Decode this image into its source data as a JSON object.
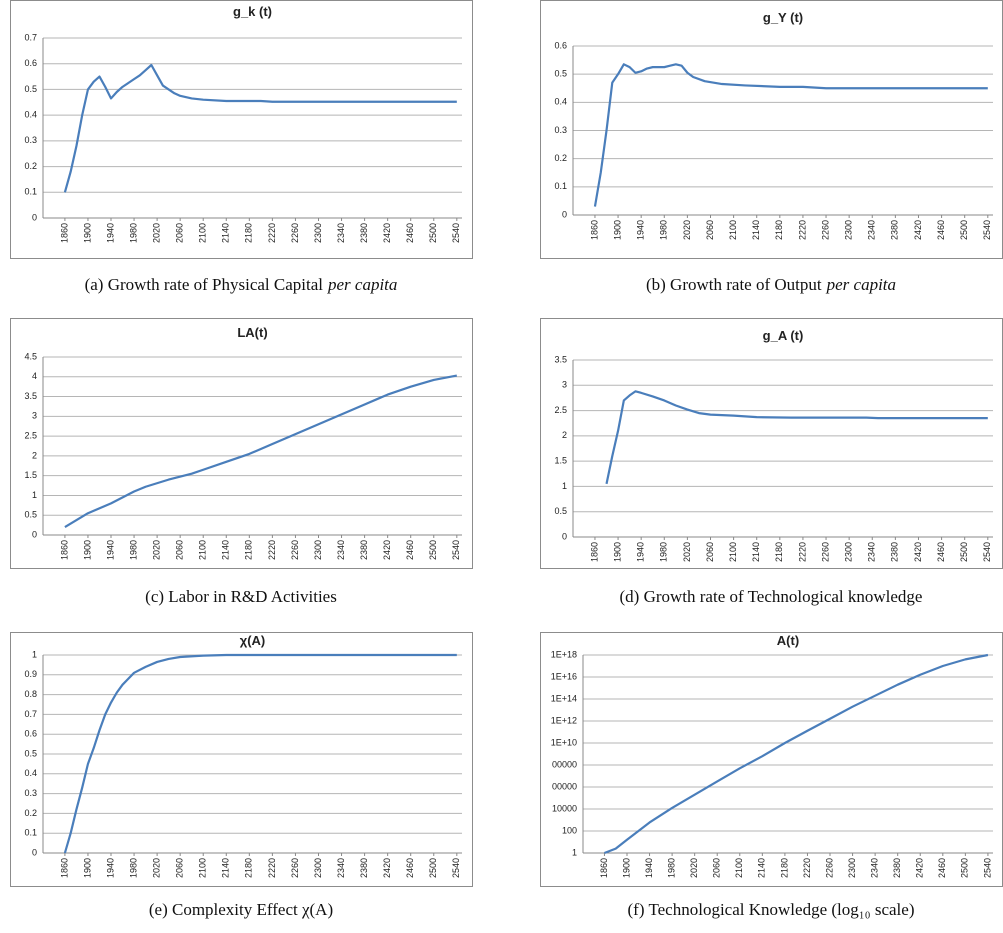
{
  "chart_data": [
    {
      "type": "line",
      "title": "g_k (t)",
      "caption": "(a) Growth rate of Physical Capital",
      "caption_italic": "per capita",
      "x": [
        1860,
        1870,
        1880,
        1890,
        1900,
        1910,
        1920,
        1930,
        1940,
        1950,
        1960,
        1970,
        1980,
        1990,
        2000,
        2010,
        2020,
        2030,
        2040,
        2050,
        2060,
        2080,
        2100,
        2140,
        2200,
        2220,
        2540
      ],
      "values": [
        0.1,
        0.18,
        0.28,
        0.4,
        0.5,
        0.53,
        0.55,
        0.51,
        0.465,
        0.49,
        0.51,
        0.525,
        0.54,
        0.555,
        0.575,
        0.595,
        0.555,
        0.515,
        0.5,
        0.485,
        0.475,
        0.465,
        0.46,
        0.455,
        0.455,
        0.452,
        0.452
      ],
      "color": "#4a7ebb",
      "xlim": [
        1822,
        2549
      ],
      "xticks": [
        1860,
        1900,
        1940,
        1980,
        2020,
        2060,
        2100,
        2140,
        2180,
        2220,
        2260,
        2300,
        2340,
        2380,
        2420,
        2460,
        2500,
        2540
      ],
      "ylim": [
        0,
        0.7
      ],
      "yticks": [
        0,
        0.1,
        0.2,
        0.3,
        0.4,
        0.5,
        0.6,
        0.7
      ],
      "grid": true
    },
    {
      "type": "line",
      "title": "g_Y (t)",
      "caption": "(b) Growth rate of Output",
      "caption_italic": "per capita",
      "x": [
        1860,
        1870,
        1880,
        1890,
        1900,
        1910,
        1920,
        1930,
        1940,
        1950,
        1960,
        1980,
        1990,
        2000,
        2010,
        2020,
        2030,
        2050,
        2080,
        2120,
        2180,
        2220,
        2260,
        2540
      ],
      "values": [
        0.03,
        0.15,
        0.3,
        0.47,
        0.5,
        0.535,
        0.525,
        0.505,
        0.51,
        0.52,
        0.525,
        0.525,
        0.53,
        0.535,
        0.53,
        0.505,
        0.49,
        0.475,
        0.465,
        0.46,
        0.455,
        0.455,
        0.45,
        0.45
      ],
      "color": "#4a7ebb",
      "xlim": [
        1822,
        2549
      ],
      "xticks": [
        1860,
        1900,
        1940,
        1980,
        2020,
        2060,
        2100,
        2140,
        2180,
        2220,
        2260,
        2300,
        2340,
        2380,
        2420,
        2460,
        2500,
        2540
      ],
      "ylim": [
        0,
        0.6
      ],
      "yticks": [
        0,
        0.1,
        0.2,
        0.3,
        0.4,
        0.5,
        0.6
      ],
      "grid": true
    },
    {
      "type": "line",
      "title": "LA(t)",
      "caption": "(c) Labor in R&D Activities",
      "x": [
        1860,
        1900,
        1940,
        1980,
        2000,
        2040,
        2080,
        2100,
        2140,
        2180,
        2220,
        2260,
        2300,
        2340,
        2380,
        2420,
        2460,
        2500,
        2540
      ],
      "values": [
        0.2,
        0.55,
        0.8,
        1.1,
        1.22,
        1.4,
        1.55,
        1.65,
        1.85,
        2.05,
        2.3,
        2.55,
        2.8,
        3.05,
        3.3,
        3.55,
        3.75,
        3.92,
        4.03
      ],
      "color": "#4a7ebb",
      "xlim": [
        1822,
        2549
      ],
      "xticks": [
        1860,
        1900,
        1940,
        1980,
        2020,
        2060,
        2100,
        2140,
        2180,
        2220,
        2260,
        2300,
        2340,
        2380,
        2420,
        2460,
        2500,
        2540
      ],
      "ylim": [
        0,
        4.5
      ],
      "yticks": [
        0,
        0.5,
        1,
        1.5,
        2,
        2.5,
        3,
        3.5,
        4,
        4.5
      ],
      "grid": true
    },
    {
      "type": "line",
      "title": "g_A (t)",
      "caption": "(d) Growth rate of Technological knowledge",
      "x": [
        1880,
        1890,
        1900,
        1910,
        1920,
        1930,
        1940,
        1960,
        1980,
        2000,
        2020,
        2040,
        2060,
        2100,
        2140,
        2200,
        2330,
        2350,
        2540
      ],
      "values": [
        1.05,
        1.6,
        2.1,
        2.7,
        2.8,
        2.88,
        2.85,
        2.78,
        2.7,
        2.6,
        2.52,
        2.45,
        2.42,
        2.4,
        2.37,
        2.36,
        2.36,
        2.35,
        2.35
      ],
      "color": "#4a7ebb",
      "xlim": [
        1822,
        2549
      ],
      "xticks": [
        1860,
        1900,
        1940,
        1980,
        2020,
        2060,
        2100,
        2140,
        2180,
        2220,
        2260,
        2300,
        2340,
        2380,
        2420,
        2460,
        2500,
        2540
      ],
      "ylim": [
        0,
        3.5
      ],
      "yticks": [
        0,
        0.5,
        1,
        1.5,
        2,
        2.5,
        3,
        3.5
      ],
      "grid": true
    },
    {
      "type": "line",
      "title": "χ(A)",
      "caption": "(e) Complexity Effect χ(A)",
      "x": [
        1860,
        1870,
        1880,
        1890,
        1900,
        1910,
        1920,
        1930,
        1940,
        1950,
        1960,
        1970,
        1980,
        2000,
        2020,
        2040,
        2060,
        2100,
        2140,
        2540
      ],
      "values": [
        0,
        0.1,
        0.22,
        0.33,
        0.45,
        0.53,
        0.62,
        0.7,
        0.76,
        0.81,
        0.85,
        0.88,
        0.91,
        0.94,
        0.965,
        0.98,
        0.99,
        0.997,
        1,
        1
      ],
      "color": "#4a7ebb",
      "xlim": [
        1822,
        2549
      ],
      "xticks": [
        1860,
        1900,
        1940,
        1980,
        2020,
        2060,
        2100,
        2140,
        2180,
        2220,
        2260,
        2300,
        2340,
        2380,
        2420,
        2460,
        2500,
        2540
      ],
      "ylim": [
        0,
        1
      ],
      "yticks": [
        0,
        0.1,
        0.2,
        0.3,
        0.4,
        0.5,
        0.6,
        0.7,
        0.8,
        0.9,
        1
      ],
      "grid": true
    },
    {
      "type": "line",
      "title": "A(t)",
      "caption": "(f) Technological Knowledge (log₁₀ scale)",
      "x": [
        1860,
        1880,
        1900,
        1940,
        1980,
        2020,
        2060,
        2100,
        2140,
        2180,
        2220,
        2260,
        2300,
        2340,
        2380,
        2420,
        2460,
        2500,
        2540
      ],
      "values": [
        1,
        2.5,
        16,
        600,
        12600,
        200000,
        3200000,
        50000000,
        630000000,
        10000000000,
        130000000000,
        1600000000000,
        20000000000000,
        200000000000000,
        2000000000000000,
        16000000000000000,
        100000000000000000,
        400000000000000000,
        1000000000000000000
      ],
      "color": "#4a7ebb",
      "xlim": [
        1822,
        2549
      ],
      "yscale": "log",
      "xticks": [
        1860,
        1900,
        1940,
        1980,
        2020,
        2060,
        2100,
        2140,
        2180,
        2220,
        2260,
        2300,
        2340,
        2380,
        2420,
        2460,
        2500,
        2540
      ],
      "ylim": [
        1,
        1000000000000000000
      ],
      "yticks": [
        1,
        100,
        10000,
        {
          "value": 1000000,
          "label": "00000"
        },
        {
          "value": 100000000,
          "label": "00000"
        },
        {
          "value": 10000000000,
          "label": "1E+10"
        },
        {
          "value": 1000000000000,
          "label": "1E+12"
        },
        {
          "value": 100000000000000,
          "label": "1E+14"
        },
        {
          "value": 10000000000000000,
          "label": "1E+16"
        },
        {
          "value": 1000000000000000000,
          "label": "1E+18"
        }
      ],
      "grid": true
    }
  ]
}
